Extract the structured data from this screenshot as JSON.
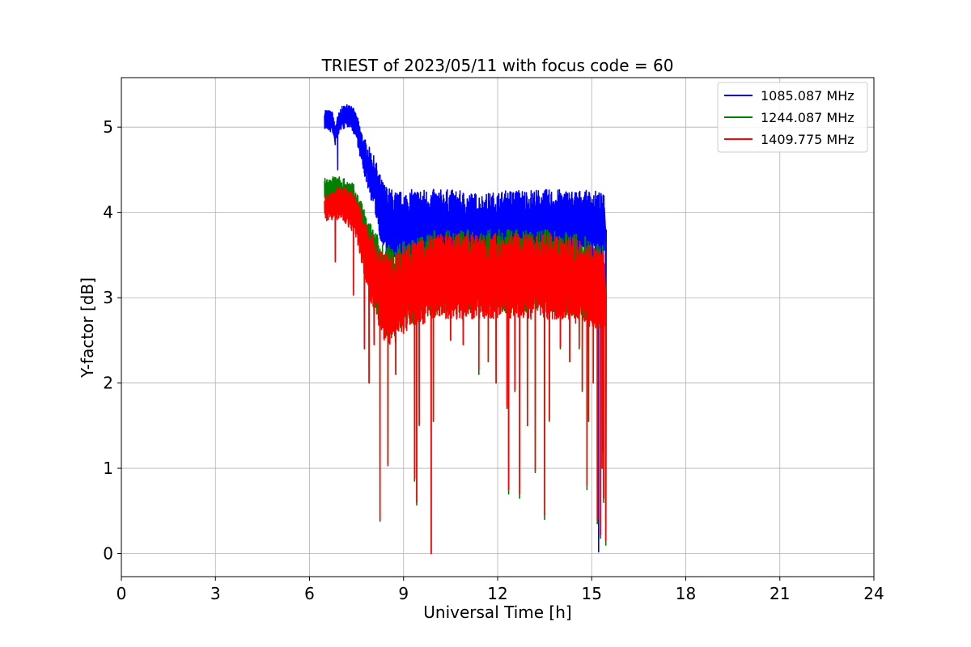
{
  "chart_data": {
    "type": "line",
    "title": "TRIEST of 2023/05/11 with focus code = 60",
    "xlabel": "Universal Time [h]",
    "ylabel": "Y-factor [dB]",
    "xlim": [
      0,
      24
    ],
    "ylim": [
      -0.27,
      5.58
    ],
    "xticks": [
      0,
      3,
      6,
      9,
      12,
      15,
      18,
      21,
      24
    ],
    "yticks": [
      0,
      1,
      2,
      3,
      4,
      5
    ],
    "grid": true,
    "legend_position": "top-right",
    "series": [
      {
        "name": "1085.087 MHz",
        "color": "#0000ff",
        "base": [
          [
            6.48,
            5.1
          ],
          [
            6.75,
            5.05
          ],
          [
            6.8,
            4.9
          ],
          [
            7.0,
            5.1
          ],
          [
            7.3,
            5.15
          ],
          [
            7.5,
            5.0
          ],
          [
            7.7,
            4.7
          ],
          [
            7.9,
            4.5
          ],
          [
            8.1,
            4.3
          ],
          [
            8.3,
            4.0
          ],
          [
            8.5,
            3.85
          ],
          [
            8.8,
            3.8
          ],
          [
            9.5,
            3.85
          ],
          [
            10.5,
            3.85
          ],
          [
            11.5,
            3.8
          ],
          [
            12.5,
            3.85
          ],
          [
            13.5,
            3.85
          ],
          [
            14.5,
            3.85
          ],
          [
            15.2,
            3.85
          ],
          [
            15.4,
            3.8
          ]
        ],
        "amp": [
          [
            6.48,
            0.12
          ],
          [
            7.5,
            0.15
          ],
          [
            8.0,
            0.3
          ],
          [
            8.5,
            0.45
          ],
          [
            10.0,
            0.42
          ],
          [
            14.0,
            0.42
          ],
          [
            15.4,
            0.4
          ]
        ],
        "dips": [
          [
            6.9,
            4.5
          ],
          [
            8.55,
            3.3
          ],
          [
            15.22,
            0.02
          ],
          [
            15.35,
            1.2
          ],
          [
            15.45,
            2.2
          ]
        ]
      },
      {
        "name": "1244.087 MHz",
        "color": "#008000",
        "base": [
          [
            6.48,
            4.25
          ],
          [
            6.8,
            4.25
          ],
          [
            7.1,
            4.2
          ],
          [
            7.4,
            4.1
          ],
          [
            7.6,
            3.9
          ],
          [
            7.8,
            3.6
          ],
          [
            8.0,
            3.4
          ],
          [
            8.3,
            3.15
          ],
          [
            8.6,
            3.05
          ],
          [
            9.0,
            3.15
          ],
          [
            10.0,
            3.3
          ],
          [
            11.0,
            3.3
          ],
          [
            12.0,
            3.3
          ],
          [
            13.0,
            3.3
          ],
          [
            14.0,
            3.3
          ],
          [
            15.0,
            3.2
          ],
          [
            15.4,
            3.1
          ]
        ],
        "amp": [
          [
            6.48,
            0.15
          ],
          [
            7.5,
            0.25
          ],
          [
            8.0,
            0.45
          ],
          [
            8.5,
            0.55
          ],
          [
            9.5,
            0.5
          ],
          [
            15.4,
            0.5
          ]
        ],
        "dips": [
          [
            6.82,
            3.45
          ],
          [
            7.4,
            3.05
          ],
          [
            7.75,
            2.4
          ],
          [
            7.9,
            2.0
          ],
          [
            8.06,
            2.45
          ],
          [
            8.25,
            0.38
          ],
          [
            8.5,
            1.05
          ],
          [
            8.75,
            2.1
          ],
          [
            9.35,
            0.85
          ],
          [
            9.42,
            0.57
          ],
          [
            9.5,
            1.5
          ],
          [
            9.88,
            0.0
          ],
          [
            9.95,
            1.55
          ],
          [
            10.5,
            2.5
          ],
          [
            10.9,
            2.45
          ],
          [
            11.4,
            2.1
          ],
          [
            11.7,
            2.25
          ],
          [
            11.95,
            2.0
          ],
          [
            12.3,
            1.7
          ],
          [
            12.35,
            0.7
          ],
          [
            12.55,
            1.9
          ],
          [
            12.7,
            0.65
          ],
          [
            12.95,
            1.5
          ],
          [
            13.2,
            0.95
          ],
          [
            13.5,
            0.4
          ],
          [
            13.65,
            1.55
          ],
          [
            14.0,
            2.4
          ],
          [
            14.3,
            2.25
          ],
          [
            14.6,
            2.4
          ],
          [
            14.7,
            1.9
          ],
          [
            14.85,
            0.75
          ],
          [
            14.9,
            1.55
          ],
          [
            15.05,
            2.0
          ],
          [
            15.18,
            0.35
          ],
          [
            15.28,
            0.18
          ],
          [
            15.33,
            1.0
          ],
          [
            15.38,
            0.6
          ],
          [
            15.45,
            0.1
          ]
        ]
      },
      {
        "name": "1409.775 MHz",
        "color": "#ff0000",
        "base": [
          [
            6.48,
            4.05
          ],
          [
            6.8,
            4.1
          ],
          [
            7.1,
            4.1
          ],
          [
            7.4,
            4.0
          ],
          [
            7.6,
            3.8
          ],
          [
            7.8,
            3.5
          ],
          [
            8.0,
            3.3
          ],
          [
            8.3,
            3.05
          ],
          [
            8.6,
            2.95
          ],
          [
            9.0,
            3.1
          ],
          [
            10.0,
            3.25
          ],
          [
            11.0,
            3.25
          ],
          [
            12.0,
            3.25
          ],
          [
            13.0,
            3.25
          ],
          [
            14.0,
            3.25
          ],
          [
            15.0,
            3.15
          ],
          [
            15.4,
            3.05
          ]
        ],
        "amp": [
          [
            6.48,
            0.15
          ],
          [
            7.5,
            0.25
          ],
          [
            8.0,
            0.45
          ],
          [
            8.5,
            0.55
          ],
          [
            9.5,
            0.5
          ],
          [
            15.4,
            0.5
          ]
        ],
        "dips": [
          [
            6.82,
            3.42
          ],
          [
            7.4,
            3.03
          ],
          [
            7.75,
            2.4
          ],
          [
            7.9,
            2.0
          ],
          [
            8.06,
            2.45
          ],
          [
            8.25,
            0.4
          ],
          [
            8.5,
            1.03
          ],
          [
            8.75,
            2.1
          ],
          [
            9.35,
            0.88
          ],
          [
            9.42,
            0.6
          ],
          [
            9.5,
            1.52
          ],
          [
            9.88,
            0.0
          ],
          [
            9.95,
            1.55
          ],
          [
            10.5,
            2.5
          ],
          [
            10.9,
            2.45
          ],
          [
            11.4,
            2.15
          ],
          [
            11.7,
            2.25
          ],
          [
            11.95,
            2.0
          ],
          [
            12.3,
            1.72
          ],
          [
            12.35,
            0.75
          ],
          [
            12.55,
            1.92
          ],
          [
            12.7,
            0.7
          ],
          [
            12.95,
            1.5
          ],
          [
            13.2,
            0.98
          ],
          [
            13.5,
            0.45
          ],
          [
            13.65,
            1.57
          ],
          [
            14.0,
            2.42
          ],
          [
            14.3,
            2.25
          ],
          [
            14.6,
            2.42
          ],
          [
            14.7,
            1.92
          ],
          [
            14.85,
            0.8
          ],
          [
            14.9,
            1.55
          ],
          [
            15.05,
            2.0
          ],
          [
            15.18,
            0.4
          ],
          [
            15.28,
            0.22
          ],
          [
            15.33,
            1.0
          ],
          [
            15.38,
            0.65
          ],
          [
            15.45,
            0.15
          ]
        ]
      }
    ]
  }
}
